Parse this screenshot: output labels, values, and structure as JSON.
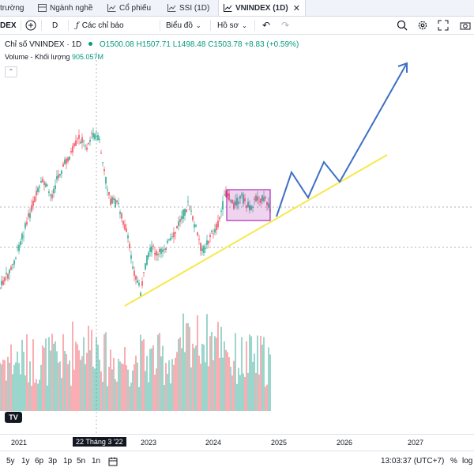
{
  "tabs": [
    {
      "label": "trường"
    },
    {
      "label": "Ngành nghề",
      "icon": "grid-icon"
    },
    {
      "label": "Cổ phiếu",
      "icon": "chart-icon"
    },
    {
      "label": "SSI (1D)",
      "icon": "chart-icon"
    },
    {
      "label": "VNINDEX (1D)",
      "icon": "chart-icon",
      "active": true
    }
  ],
  "toolbar": {
    "symbol": "DEX",
    "interval": "D",
    "indicators_label": "Các chỉ báo",
    "chart_type_label": "Biểu đồ",
    "profile_label": "Hồ sơ"
  },
  "legend": {
    "title": "Chỉ số VNINDEX · 1D",
    "open": "O1500.08",
    "high": "H1507.71",
    "low": "L1498.48",
    "close": "C1503.78",
    "change": "+8.83 (+0.59%)",
    "volume_label": "Volume - Khối lượng",
    "volume_value": "905.057M"
  },
  "xaxis": {
    "labels": [
      "2021",
      "22 Tháng 3 '22",
      "2023",
      "2024",
      "2025",
      "2026",
      "2027"
    ]
  },
  "bottombar": {
    "ranges": [
      "5y",
      "1y",
      "6p",
      "3p",
      "1p",
      "5n",
      "1n"
    ],
    "time": "13:03:37 (UTC+7)",
    "percent": "%",
    "log": "log"
  },
  "colors": {
    "up": "#089981",
    "down": "#f23645",
    "trendline": "#f7e84a",
    "projection": "#3d6fc4",
    "box": "#b13ab8"
  },
  "chart_data": {
    "type": "candlestick",
    "symbol": "VNINDEX",
    "interval": "1D",
    "x_axis_ticks": [
      "2021",
      "22 Tháng 3 '22",
      "2023",
      "2024",
      "2025",
      "2026",
      "2027"
    ],
    "last_bar": {
      "open": 1500.08,
      "high": 1507.71,
      "low": 1498.48,
      "close": 1503.78,
      "change": 8.83,
      "change_pct": 0.59
    },
    "volume_last": "905.057M",
    "annotations": [
      "rising support trendline (yellow)",
      "consolidation rectangle (purple)",
      "projected zigzag path (blue arrow)"
    ]
  }
}
